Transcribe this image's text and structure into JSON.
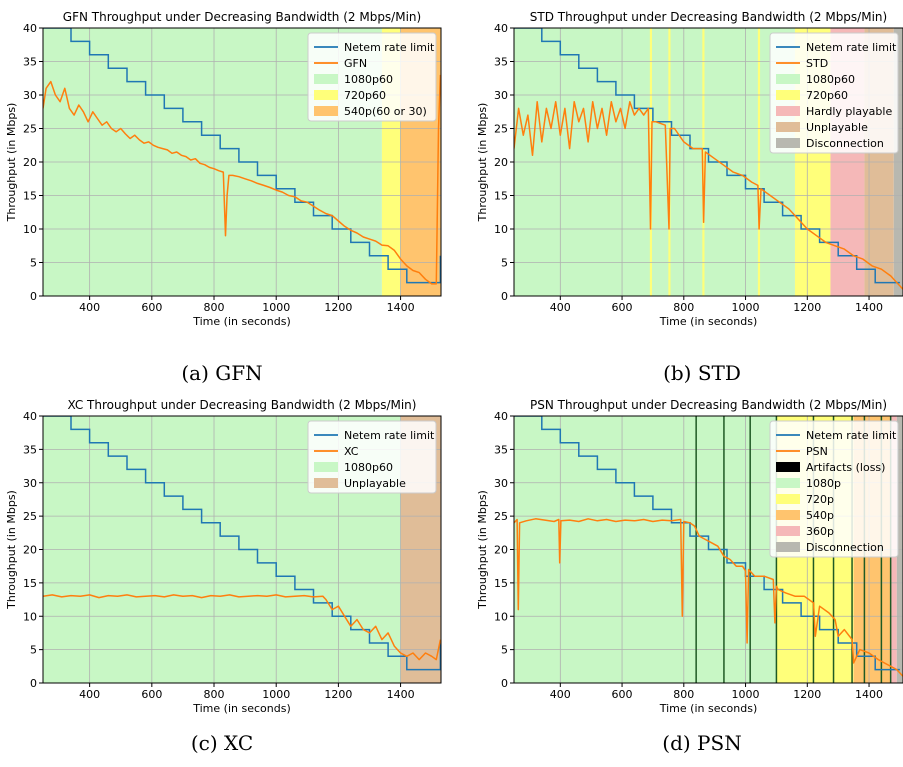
{
  "chart_data": [
    {
      "id": "gfn",
      "type": "line",
      "caption": "(a) GFN",
      "title": "GFN Throughput under Decreasing Bandwidth (2 Mbps/Min)",
      "xlabel": "Time (in seconds)",
      "ylabel": "Throughput (in Mbps)",
      "xlim": [
        250,
        1530
      ],
      "ylim": [
        0,
        40
      ],
      "xticks": [
        400,
        600,
        800,
        1000,
        1200,
        1400
      ],
      "yticks": [
        0,
        5,
        10,
        15,
        20,
        25,
        30,
        35,
        40
      ],
      "grid": true,
      "legend_position": "top-right",
      "legend": [
        {
          "kind": "line",
          "label": "Netem rate limit",
          "color": "#1f77b4"
        },
        {
          "kind": "line",
          "label": "GFN",
          "color": "#ff7f0e"
        },
        {
          "kind": "patch",
          "label": "1080p60",
          "color": "#c8f7c5"
        },
        {
          "kind": "patch",
          "label": "720p60",
          "color": "#ffff7a"
        },
        {
          "kind": "patch",
          "label": "540p(60 or 30)",
          "color": "#ffc46e"
        }
      ],
      "bands": [
        {
          "from": 250,
          "to": 1340,
          "color": "#c8f7c5"
        },
        {
          "from": 1340,
          "to": 1400,
          "color": "#ffff7a"
        },
        {
          "from": 1400,
          "to": 1530,
          "color": "#ffc46e"
        }
      ],
      "vlines": [],
      "rate_limit": {
        "start": 40,
        "first_step": 340,
        "step_seconds": 60,
        "step_mbps": 2,
        "end": 1520,
        "floor": 2,
        "jump": [
          1528,
          6
        ]
      },
      "throughput": {
        "x": [
          250,
          260,
          275,
          290,
          305,
          320,
          335,
          350,
          365,
          380,
          395,
          410,
          425,
          440,
          455,
          470,
          485,
          500,
          515,
          530,
          545,
          560,
          575,
          590,
          605,
          620,
          635,
          650,
          665,
          680,
          695,
          710,
          725,
          740,
          755,
          770,
          785,
          800,
          815,
          830,
          837,
          842,
          848,
          860,
          880,
          900,
          920,
          940,
          960,
          980,
          1000,
          1020,
          1040,
          1060,
          1080,
          1100,
          1120,
          1140,
          1160,
          1180,
          1200,
          1220,
          1240,
          1260,
          1280,
          1300,
          1320,
          1340,
          1360,
          1380,
          1400,
          1420,
          1440,
          1460,
          1480,
          1500,
          1515,
          1522,
          1528
        ],
        "y": [
          28,
          31,
          32,
          30,
          29,
          31,
          28,
          27,
          28.5,
          27.5,
          26,
          27.5,
          26.5,
          25.5,
          26,
          25,
          24.5,
          25,
          24.2,
          23.5,
          24,
          23.3,
          22.8,
          23,
          22.5,
          22.2,
          22,
          21.8,
          21.3,
          21.5,
          21,
          20.8,
          20.3,
          20.5,
          19.8,
          19.6,
          19.2,
          19,
          18.7,
          18.5,
          9,
          15,
          18,
          18,
          17.8,
          17.5,
          17.2,
          16.8,
          16.5,
          16.2,
          15.8,
          15.5,
          15,
          14.8,
          14.2,
          14,
          13.4,
          12.8,
          12.3,
          12,
          11.2,
          10.4,
          9.8,
          9.4,
          8.8,
          8.5,
          8.2,
          7.6,
          7.5,
          6.8,
          5.5,
          4.5,
          3.8,
          3.5,
          2.5,
          1.8,
          1.8,
          25,
          33
        ]
      }
    },
    {
      "id": "std",
      "type": "line",
      "caption": "(b) STD",
      "title": "STD Throughput under Decreasing Bandwidth (2 Mbps/Min)",
      "xlabel": "Time (in seconds)",
      "ylabel": "Throughput (in Mbps)",
      "xlim": [
        250,
        1510
      ],
      "ylim": [
        0,
        40
      ],
      "xticks": [
        400,
        600,
        800,
        1000,
        1200,
        1400
      ],
      "yticks": [
        0,
        5,
        10,
        15,
        20,
        25,
        30,
        35,
        40
      ],
      "grid": true,
      "legend_position": "top-right",
      "legend": [
        {
          "kind": "line",
          "label": "Netem rate limit",
          "color": "#1f77b4"
        },
        {
          "kind": "line",
          "label": "STD",
          "color": "#ff7f0e"
        },
        {
          "kind": "patch",
          "label": "1080p60",
          "color": "#c8f7c5"
        },
        {
          "kind": "patch",
          "label": "720p60",
          "color": "#ffff7a"
        },
        {
          "kind": "patch",
          "label": "Hardly playable",
          "color": "#f5b8b8"
        },
        {
          "kind": "patch",
          "label": "Unplayable",
          "color": "#e0bd98"
        },
        {
          "kind": "patch",
          "label": "Disconnection",
          "color": "#b8b8b0"
        }
      ],
      "bands": [
        {
          "from": 250,
          "to": 1160,
          "color": "#c8f7c5"
        },
        {
          "from": 690,
          "to": 697,
          "color": "#ffff7a"
        },
        {
          "from": 750,
          "to": 757,
          "color": "#ffff7a"
        },
        {
          "from": 860,
          "to": 867,
          "color": "#ffff7a"
        },
        {
          "from": 1040,
          "to": 1047,
          "color": "#ffff7a"
        },
        {
          "from": 1160,
          "to": 1275,
          "color": "#ffff7a"
        },
        {
          "from": 1275,
          "to": 1385,
          "color": "#f5b8b8"
        },
        {
          "from": 1385,
          "to": 1480,
          "color": "#e0bd98"
        },
        {
          "from": 1480,
          "to": 1510,
          "color": "#b8b8b0"
        }
      ],
      "vlines": [],
      "rate_limit": {
        "start": 40,
        "first_step": 340,
        "step_seconds": 60,
        "step_mbps": 2,
        "end": 1500,
        "floor": 2,
        "jump": null
      },
      "throughput": {
        "x": [
          250,
          265,
          280,
          295,
          310,
          325,
          340,
          355,
          370,
          385,
          400,
          415,
          430,
          445,
          460,
          475,
          490,
          505,
          520,
          535,
          550,
          565,
          580,
          595,
          610,
          625,
          640,
          655,
          670,
          685,
          692,
          697,
          710,
          740,
          752,
          756,
          770,
          800,
          830,
          860,
          864,
          870,
          900,
          930,
          960,
          990,
          1020,
          1040,
          1044,
          1050,
          1080,
          1110,
          1140,
          1170,
          1200,
          1230,
          1260,
          1290,
          1320,
          1350,
          1380,
          1410,
          1440,
          1470,
          1490,
          1500,
          1510
        ],
        "y": [
          22,
          28,
          24,
          27,
          21,
          29,
          23,
          28,
          25,
          29,
          24,
          28,
          22,
          29,
          26,
          28,
          23,
          29,
          25,
          28,
          24,
          29,
          26,
          28,
          25,
          29,
          27,
          28,
          27,
          28,
          10,
          26,
          26,
          25.5,
          10,
          25,
          25,
          23,
          22,
          22,
          11,
          21.5,
          20.5,
          19.5,
          18.5,
          18,
          17,
          16.5,
          10,
          16,
          15,
          14,
          13,
          11.5,
          10,
          9,
          8,
          7.5,
          7,
          6,
          5.5,
          4.5,
          4,
          3,
          2,
          1.5,
          1
        ]
      }
    },
    {
      "id": "xc",
      "type": "line",
      "caption": "(c) XC",
      "title": "XC Throughput under Decreasing Bandwidth (2 Mbps/Min)",
      "xlabel": "Time (in seconds)",
      "ylabel": "Throughput (in Mbps)",
      "xlim": [
        250,
        1530
      ],
      "ylim": [
        0,
        40
      ],
      "xticks": [
        400,
        600,
        800,
        1000,
        1200,
        1400
      ],
      "yticks": [
        0,
        5,
        10,
        15,
        20,
        25,
        30,
        35,
        40
      ],
      "grid": true,
      "legend_position": "top-right",
      "legend": [
        {
          "kind": "line",
          "label": "Netem rate limit",
          "color": "#1f77b4"
        },
        {
          "kind": "line",
          "label": "XC",
          "color": "#ff7f0e"
        },
        {
          "kind": "patch",
          "label": "1080p60",
          "color": "#c8f7c5"
        },
        {
          "kind": "patch",
          "label": "Unplayable",
          "color": "#e0bd98"
        }
      ],
      "bands": [
        {
          "from": 250,
          "to": 1400,
          "color": "#c8f7c5"
        },
        {
          "from": 1400,
          "to": 1530,
          "color": "#e0bd98"
        }
      ],
      "vlines": [],
      "rate_limit": {
        "start": 40,
        "first_step": 340,
        "step_seconds": 60,
        "step_mbps": 2,
        "end": 1520,
        "floor": 2,
        "jump": [
          1528,
          6
        ]
      },
      "throughput": {
        "x": [
          250,
          280,
          310,
          340,
          370,
          400,
          430,
          460,
          490,
          520,
          550,
          580,
          610,
          640,
          670,
          700,
          730,
          760,
          790,
          820,
          850,
          880,
          910,
          940,
          970,
          1000,
          1030,
          1060,
          1090,
          1120,
          1150,
          1160,
          1180,
          1200,
          1220,
          1240,
          1260,
          1280,
          1300,
          1320,
          1340,
          1360,
          1380,
          1400,
          1420,
          1440,
          1460,
          1480,
          1500,
          1515,
          1528
        ],
        "y": [
          13,
          13.2,
          12.9,
          13.1,
          13,
          13.2,
          12.8,
          13.1,
          13,
          13.2,
          12.9,
          13,
          13.1,
          12.9,
          13.2,
          13,
          13.1,
          12.8,
          13.1,
          13,
          13.2,
          12.9,
          13,
          13.1,
          13,
          13.2,
          12.9,
          13,
          13.1,
          12.9,
          13,
          12.5,
          11,
          11.5,
          10,
          8.5,
          9.5,
          8,
          7.5,
          8.5,
          6.5,
          7.5,
          5.5,
          4.5,
          4,
          4.5,
          3.5,
          4.5,
          4,
          3.5,
          6.5
        ]
      }
    },
    {
      "id": "psn",
      "type": "line",
      "caption": "(d) PSN",
      "title": "PSN Throughput under Decreasing Bandwidth (2 Mbps/Min)",
      "xlabel": "Time (in seconds)",
      "ylabel": "Throughput (in Mbps)",
      "xlim": [
        250,
        1510
      ],
      "ylim": [
        0,
        40
      ],
      "xticks": [
        400,
        600,
        800,
        1000,
        1200,
        1400
      ],
      "yticks": [
        0,
        5,
        10,
        15,
        20,
        25,
        30,
        35,
        40
      ],
      "grid": true,
      "legend_position": "top-right",
      "legend": [
        {
          "kind": "line",
          "label": "Netem rate limit",
          "color": "#1f77b4"
        },
        {
          "kind": "line",
          "label": "PSN",
          "color": "#ff7f0e"
        },
        {
          "kind": "patch",
          "label": "Artifacts (loss)",
          "color": "#000000"
        },
        {
          "kind": "patch",
          "label": "1080p",
          "color": "#c8f7c5"
        },
        {
          "kind": "patch",
          "label": "720p",
          "color": "#ffff7a"
        },
        {
          "kind": "patch",
          "label": "540p",
          "color": "#ffc46e"
        },
        {
          "kind": "patch",
          "label": "360p",
          "color": "#f5b8b8"
        },
        {
          "kind": "patch",
          "label": "Disconnection",
          "color": "#b8b8b0"
        }
      ],
      "bands": [
        {
          "from": 250,
          "to": 1100,
          "color": "#c8f7c5"
        },
        {
          "from": 1100,
          "to": 1350,
          "color": "#ffff7a"
        },
        {
          "from": 1350,
          "to": 1470,
          "color": "#ffc46e"
        },
        {
          "from": 1470,
          "to": 1490,
          "color": "#f5b8b8"
        },
        {
          "from": 1490,
          "to": 1510,
          "color": "#b8b8b0"
        }
      ],
      "vlines": [
        840,
        930,
        1015,
        1100,
        1220,
        1285,
        1345,
        1385,
        1440,
        1470
      ],
      "rate_limit": {
        "start": 40,
        "first_step": 340,
        "step_seconds": 60,
        "step_mbps": 2,
        "end": 1500,
        "floor": 2,
        "jump": null
      },
      "throughput": {
        "x": [
          250,
          260,
          264,
          268,
          290,
          320,
          350,
          380,
          395,
          398,
          402,
          430,
          460,
          490,
          520,
          550,
          580,
          610,
          640,
          670,
          700,
          730,
          760,
          790,
          795,
          800,
          820,
          835,
          850,
          870,
          890,
          910,
          930,
          950,
          970,
          990,
          1000,
          1005,
          1010,
          1030,
          1060,
          1090,
          1095,
          1100,
          1105,
          1130,
          1160,
          1190,
          1220,
          1226,
          1240,
          1270,
          1290,
          1300,
          1320,
          1345,
          1350,
          1370,
          1400,
          1430,
          1450,
          1470,
          1490,
          1510
        ],
        "y": [
          24,
          24.5,
          11,
          24,
          24.3,
          24.6,
          24.4,
          24.2,
          24.5,
          18,
          24.3,
          24.4,
          24.2,
          24.6,
          24.3,
          24.5,
          24.2,
          24.4,
          24.3,
          24.5,
          24.2,
          24.4,
          24.3,
          24.5,
          10,
          24.2,
          24,
          23.5,
          22,
          21.5,
          21,
          20.5,
          19,
          18.5,
          17.5,
          17.5,
          16.8,
          6,
          17,
          16,
          16,
          15.5,
          9,
          14.5,
          14,
          13.5,
          13,
          13,
          12,
          7,
          11.5,
          10.5,
          9.5,
          7,
          8,
          6.5,
          3,
          5,
          4.5,
          3.5,
          3,
          2.5,
          2,
          1
        ]
      }
    }
  ]
}
